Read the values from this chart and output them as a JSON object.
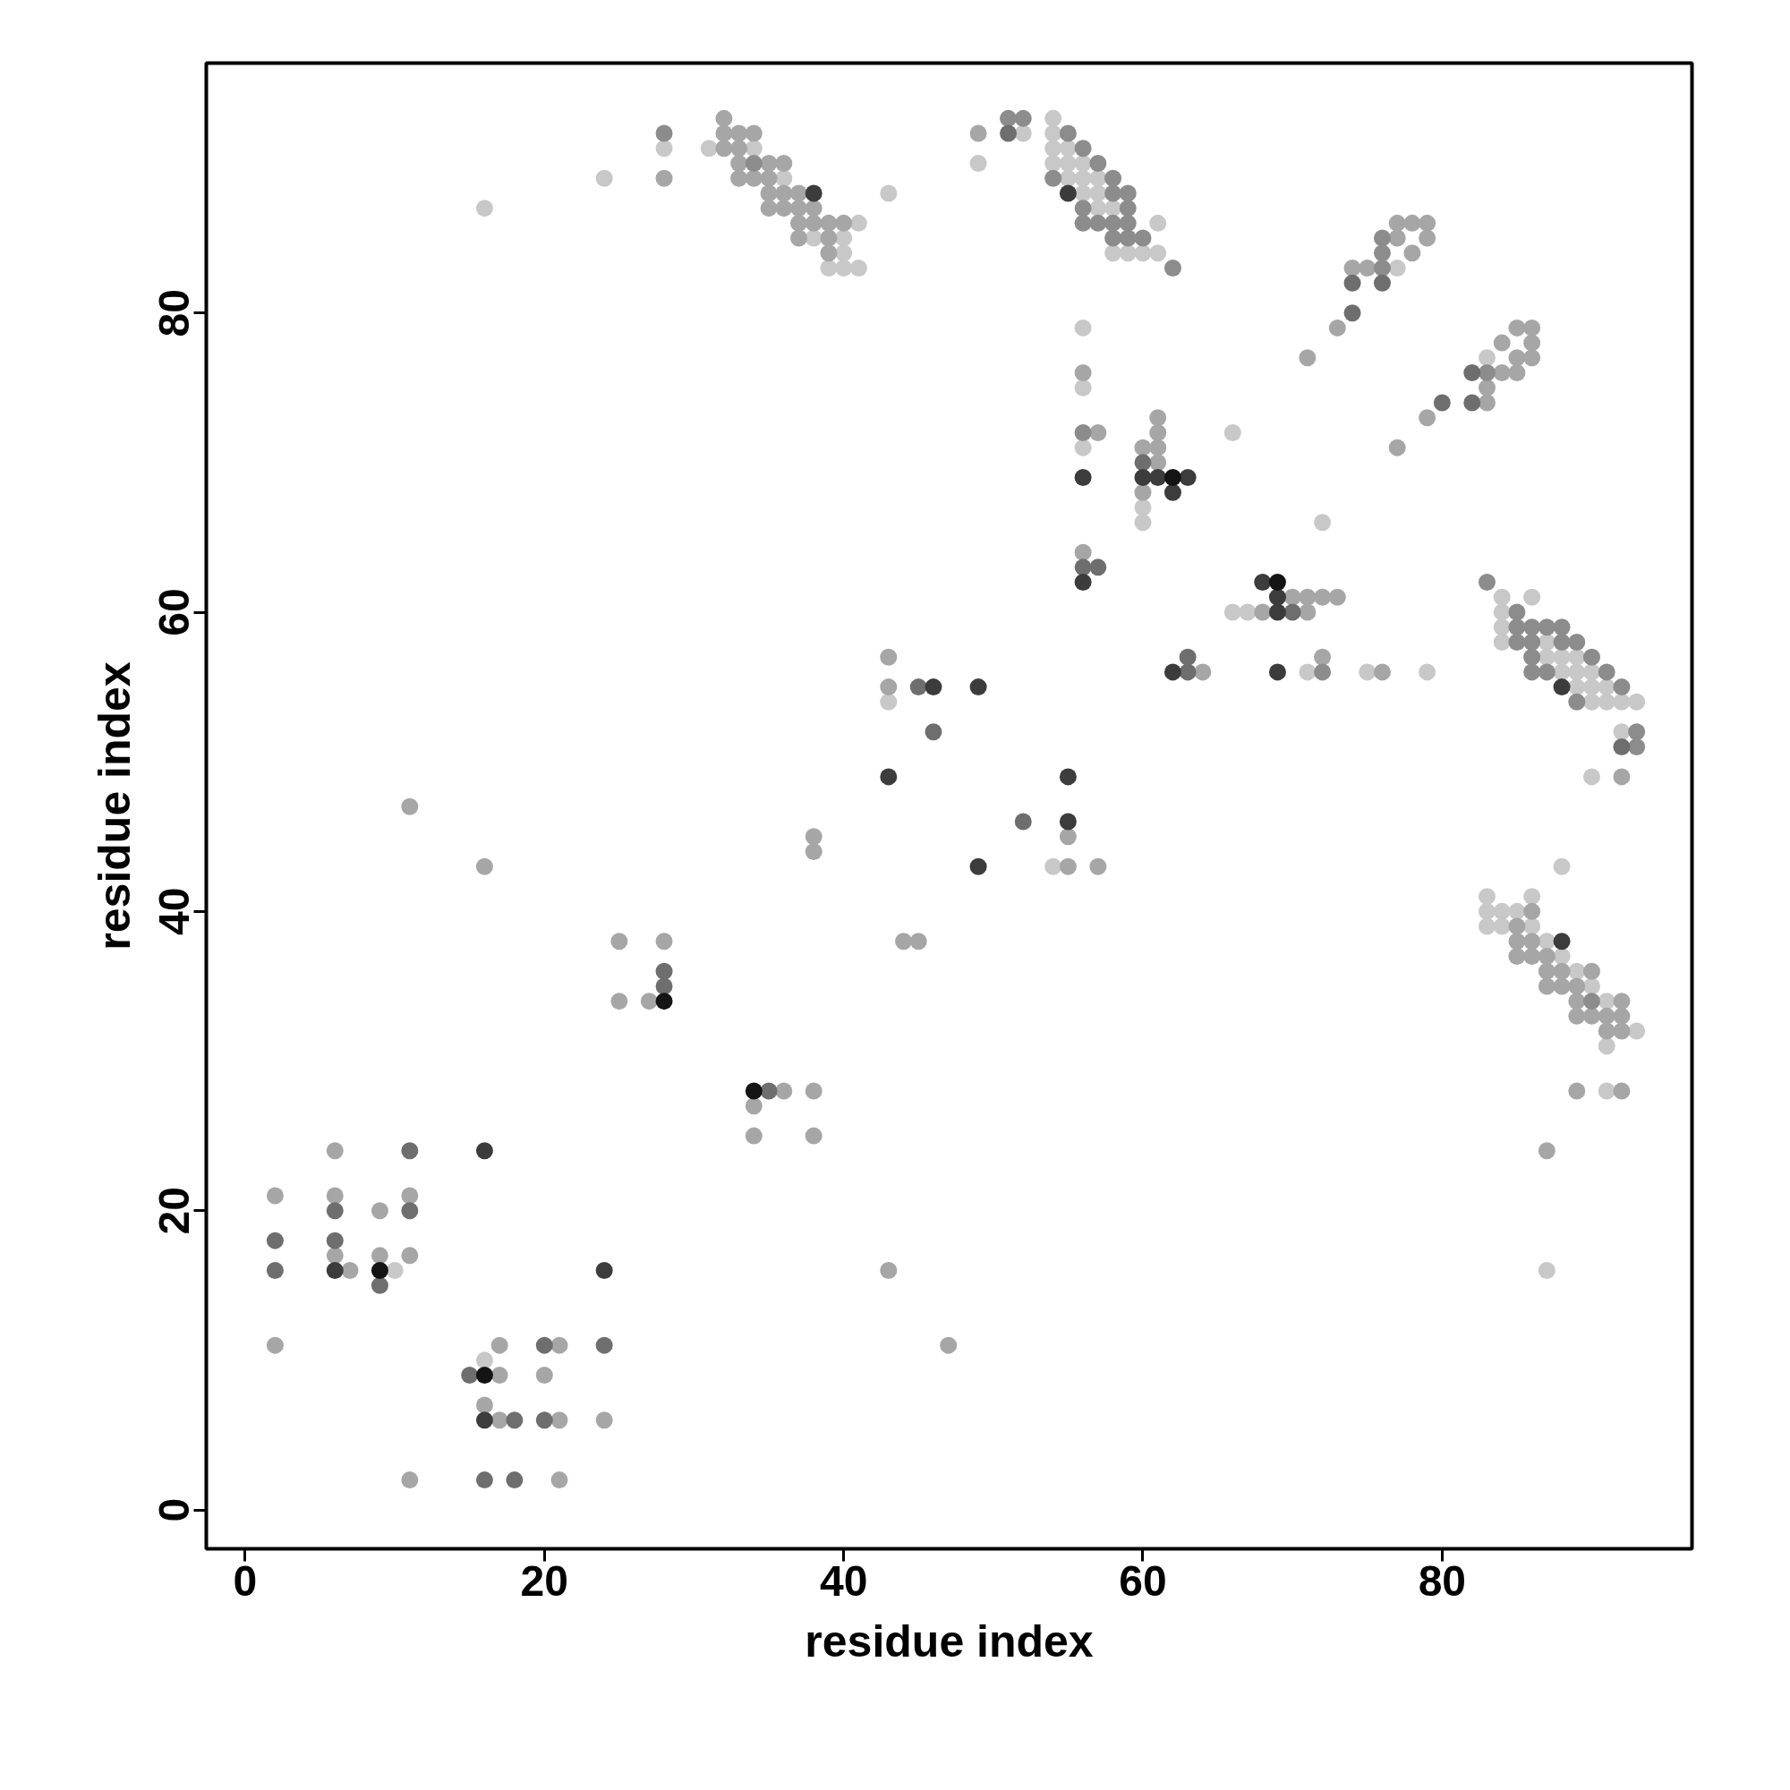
{
  "chart_data": {
    "type": "scatter",
    "xlabel": "residue index",
    "ylabel": "residue index",
    "xlim": [
      -2.6,
      96.7
    ],
    "ylim": [
      -2.6,
      96.7
    ],
    "xticks": [
      0,
      20,
      40,
      60,
      80
    ],
    "yticks": [
      0,
      20,
      40,
      60,
      80
    ],
    "grid": false,
    "marker": "circle",
    "series": [
      {
        "color": "#c8c8c8",
        "x": [
          28,
          31,
          34,
          36,
          38,
          40,
          40,
          39,
          40,
          41,
          41,
          43,
          24,
          16,
          10,
          16,
          54,
          52,
          54,
          54,
          55,
          49,
          54,
          55,
          56,
          55,
          56,
          57,
          56,
          57,
          57,
          58,
          61,
          58,
          59,
          60,
          61,
          77,
          83,
          56,
          56,
          66,
          56,
          60,
          60,
          72,
          66,
          67,
          71,
          75,
          79,
          84,
          86,
          84,
          84,
          84,
          87,
          87,
          88,
          89,
          88,
          89,
          90,
          89,
          90,
          91,
          90,
          91,
          92,
          93,
          92,
          90,
          88,
          83,
          86,
          83,
          84,
          85,
          83,
          84,
          86,
          87,
          88,
          89,
          90,
          91,
          93,
          91,
          91,
          87,
          54,
          43
        ],
        "values": [
          91,
          91,
          91,
          89,
          85,
          85,
          84,
          83,
          83,
          83,
          86,
          88,
          89,
          87,
          16,
          10,
          93,
          92,
          92,
          91,
          91,
          90,
          90,
          90,
          90,
          89,
          89,
          89,
          88,
          88,
          87,
          87,
          86,
          84,
          84,
          84,
          84,
          83,
          77,
          79,
          75,
          72,
          71,
          67,
          66,
          66,
          60,
          60,
          56,
          56,
          56,
          61,
          61,
          60,
          59,
          58,
          58,
          57,
          57,
          57,
          56,
          56,
          56,
          55,
          55,
          55,
          54,
          54,
          54,
          54,
          52,
          49,
          43,
          41,
          41,
          40,
          40,
          40,
          39,
          39,
          39,
          38,
          37,
          36,
          35,
          34,
          32,
          31,
          28,
          16,
          43,
          54
        ]
      },
      {
        "color": "#a6a6a6",
        "x": [
          32,
          32,
          33,
          34,
          32,
          33,
          33,
          35,
          36,
          28,
          33,
          34,
          35,
          35,
          36,
          37,
          35,
          36,
          37,
          38,
          37,
          38,
          39,
          40,
          37,
          39,
          39,
          49,
          77,
          78,
          79,
          77,
          79,
          78,
          74,
          75,
          73,
          85,
          86,
          84,
          86,
          71,
          85,
          86,
          84,
          85,
          83,
          83,
          79,
          56,
          61,
          57,
          61,
          60,
          61,
          77,
          61,
          60,
          56,
          70,
          71,
          72,
          73,
          68,
          71,
          72,
          64,
          76,
          92,
          86,
          85,
          85,
          86,
          85,
          86,
          87,
          87,
          88,
          90,
          87,
          88,
          89,
          89,
          92,
          89,
          90,
          91,
          92,
          91,
          92,
          89,
          92,
          87,
          43,
          43,
          47,
          44,
          45,
          55,
          55,
          57,
          43,
          38,
          38,
          38,
          38,
          34,
          34,
          36,
          25,
          25,
          27,
          28,
          11,
          16,
          6,
          2,
          6,
          11,
          9,
          6,
          9,
          11,
          7,
          2,
          17,
          21,
          17,
          20,
          16,
          17,
          21,
          24,
          11,
          21
        ],
        "values": [
          93,
          92,
          92,
          92,
          91,
          91,
          90,
          90,
          90,
          89,
          89,
          89,
          89,
          88,
          88,
          88,
          87,
          87,
          87,
          87,
          86,
          86,
          86,
          86,
          85,
          85,
          84,
          92,
          86,
          86,
          86,
          85,
          85,
          84,
          83,
          83,
          79,
          79,
          79,
          78,
          78,
          77,
          77,
          77,
          76,
          76,
          75,
          74,
          73,
          76,
          73,
          72,
          72,
          71,
          71,
          71,
          70,
          68,
          64,
          61,
          61,
          61,
          61,
          60,
          60,
          57,
          56,
          56,
          49,
          40,
          39,
          38,
          38,
          37,
          37,
          37,
          36,
          36,
          36,
          35,
          35,
          35,
          34,
          34,
          33,
          33,
          33,
          33,
          32,
          32,
          28,
          28,
          24,
          57,
          55,
          11,
          38,
          38,
          45,
          43,
          43,
          16,
          45,
          44,
          28,
          25,
          27,
          25,
          28,
          38,
          34,
          34,
          38,
          47,
          43,
          24,
          21,
          21,
          21,
          20,
          17,
          17,
          17,
          16,
          11,
          11,
          11,
          9,
          9,
          7,
          6,
          6,
          6,
          2,
          2
        ]
      },
      {
        "color": "#8c8c8c",
        "x": [
          28,
          34,
          51,
          52,
          55,
          56,
          57,
          54,
          58,
          58,
          59,
          56,
          59,
          56,
          57,
          58,
          59,
          58,
          59,
          60,
          62,
          76,
          76,
          76,
          83,
          56,
          72,
          83,
          85,
          85,
          86,
          87,
          88,
          85,
          86,
          88,
          89,
          86,
          90,
          86,
          87,
          91,
          92,
          89,
          93,
          93,
          90
        ],
        "values": [
          92,
          90,
          93,
          93,
          92,
          91,
          90,
          89,
          89,
          88,
          88,
          87,
          87,
          86,
          86,
          86,
          86,
          85,
          85,
          85,
          83,
          85,
          84,
          83,
          76,
          72,
          56,
          62,
          60,
          59,
          59,
          59,
          59,
          58,
          58,
          58,
          58,
          57,
          57,
          56,
          56,
          56,
          55,
          54,
          52,
          51,
          34
        ]
      },
      {
        "color": "#6e6e6e",
        "x": [
          51,
          74,
          76,
          74,
          82,
          80,
          82,
          60,
          56,
          57,
          70,
          63,
          63,
          45,
          46,
          52,
          28,
          28,
          35,
          92,
          11,
          6,
          11,
          2,
          6,
          2,
          9,
          20,
          24,
          15,
          18,
          20,
          16,
          18
        ],
        "values": [
          92,
          82,
          82,
          80,
          76,
          74,
          74,
          70,
          63,
          63,
          60,
          57,
          56,
          55,
          52,
          46,
          36,
          35,
          28,
          51,
          24,
          20,
          20,
          18,
          18,
          16,
          15,
          11,
          11,
          9,
          6,
          6,
          2,
          2
        ]
      },
      {
        "color": "#3c3c3c",
        "x": [
          38,
          55,
          56,
          60,
          61,
          63,
          62,
          56,
          68,
          69,
          69,
          62,
          69,
          88,
          88,
          43,
          46,
          49,
          49,
          55,
          55,
          16,
          6,
          24,
          16
        ],
        "values": [
          88,
          88,
          69,
          69,
          69,
          69,
          68,
          62,
          62,
          61,
          60,
          56,
          56,
          55,
          38,
          49,
          55,
          55,
          43,
          49,
          46,
          24,
          16,
          16,
          6
        ]
      },
      {
        "color": "#141414",
        "x": [
          62,
          69,
          9,
          16,
          28,
          34
        ],
        "values": [
          69,
          62,
          16,
          9,
          34,
          28
        ]
      }
    ]
  }
}
